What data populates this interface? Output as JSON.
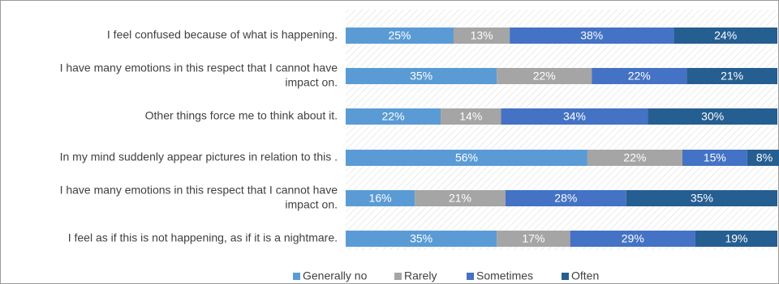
{
  "chart_data": {
    "type": "bar",
    "orientation": "horizontal",
    "stacked": true,
    "categories": [
      [
        "I feel confused because of what is happening."
      ],
      [
        "I have many emotions in this respect that I cannot have",
        "impact on."
      ],
      [
        "Other things force me to think about it."
      ],
      [
        "In my mind suddenly appear pictures in relation to this ."
      ],
      [
        "I have many emotions in this respect that I cannot have",
        "impact on."
      ],
      [
        "I feel as if this is not happening, as if it is a nightmare."
      ]
    ],
    "series": [
      {
        "name": "Generally no",
        "color": "#5b9bd5",
        "values": [
          25,
          35,
          22,
          56,
          16,
          35
        ]
      },
      {
        "name": "Rarely",
        "color": "#a5a5a5",
        "values": [
          13,
          22,
          14,
          22,
          21,
          17
        ]
      },
      {
        "name": "Sometimes",
        "color": "#4472c4",
        "values": [
          38,
          22,
          34,
          15,
          28,
          29
        ]
      },
      {
        "name": "Often",
        "color": "#255e91",
        "values": [
          24,
          21,
          30,
          8,
          35,
          19
        ]
      }
    ],
    "value_suffix": "%",
    "xlim": [
      0,
      100
    ],
    "legend_position": "bottom",
    "plot_background": "hatched"
  }
}
